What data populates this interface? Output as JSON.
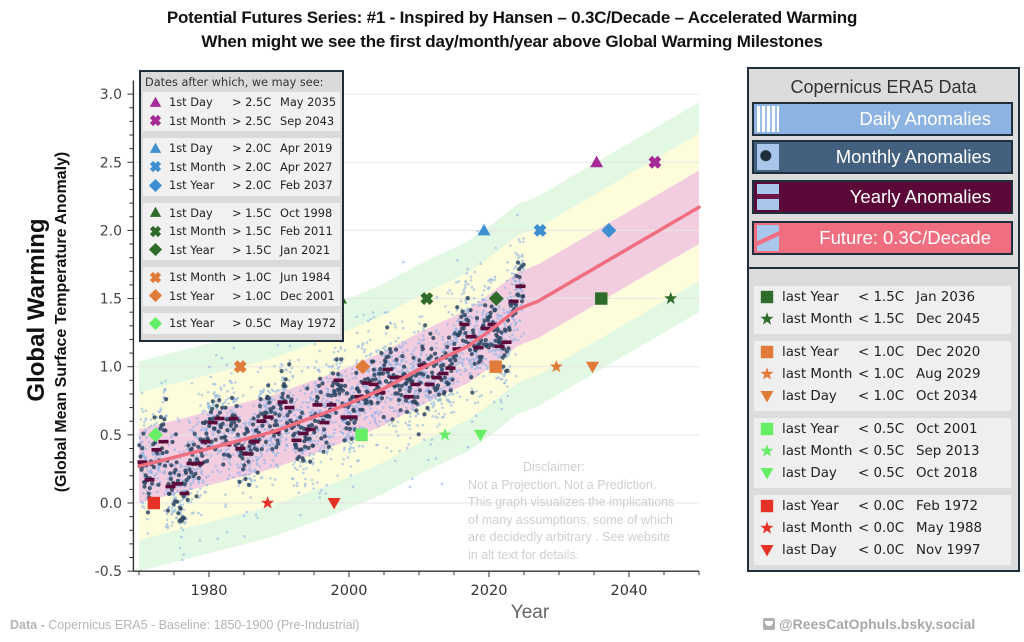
{
  "title": {
    "line1": "Potential Futures Series: #1 - Inspired by Hansen – 0.3C/Decade – Accelerated Warming",
    "line2": "When might we see the first day/month/year above Global Warming Milestones"
  },
  "axes": {
    "ylabel_main": "Global Warming",
    "ylabel_sub": "(Global Mean Surface Temperature Anomaly)",
    "xlabel": "Year"
  },
  "chart_data": {
    "type": "scatter",
    "title": "Potential Futures Series: #1 - Inspired by Hansen – 0.3C/Decade – Accelerated Warming",
    "subtitle": "When might we see the first day/month/year above Global Warming Milestones",
    "xlabel": "Year",
    "ylabel": "Global Warming (Global Mean Surface Temperature Anomaly)",
    "xlim": [
      1969.2,
      2050
    ],
    "ylim": [
      -0.5,
      3.1
    ],
    "xticks": [
      1980,
      2000,
      2020,
      2040
    ],
    "xtick_labels": [
      "1980",
      "2000",
      "2020",
      "2040"
    ],
    "yticks": [
      -0.5,
      0.0,
      0.5,
      1.0,
      1.5,
      2.0,
      2.5,
      3.0
    ],
    "ytick_labels": [
      "-0.5",
      "0.0",
      "0.5",
      "1.0",
      "1.5",
      "2.0",
      "2.5",
      "3.0"
    ],
    "grid": "horizontal",
    "legend": [
      "top-left",
      "right"
    ],
    "series": {
      "daily": {
        "name": "Daily Anomalies",
        "color": "#8db3e2",
        "spread_sd": 0.2
      },
      "monthly": {
        "name": "Monthly Anomalies",
        "color": "#2d4560",
        "spread_sd": 0.12
      },
      "yearly": {
        "name": "Yearly Anomalies",
        "color": "#5c0a3a",
        "x": [
          1970,
          1971,
          1972,
          1973,
          1974,
          1975,
          1976,
          1977,
          1978,
          1979,
          1980,
          1981,
          1982,
          1983,
          1984,
          1985,
          1986,
          1987,
          1988,
          1989,
          1990,
          1991,
          1992,
          1993,
          1994,
          1995,
          1996,
          1997,
          1998,
          1999,
          2000,
          2001,
          2002,
          2003,
          2004,
          2005,
          2006,
          2007,
          2008,
          2009,
          2010,
          2011,
          2012,
          2013,
          2014,
          2015,
          2016,
          2017,
          2018,
          2019,
          2020,
          2021,
          2022,
          2023,
          2024
        ],
        "values": [
          0.3,
          0.17,
          0.39,
          0.45,
          0.12,
          0.14,
          0.07,
          0.29,
          0.29,
          0.45,
          0.59,
          0.62,
          0.43,
          0.62,
          0.4,
          0.36,
          0.45,
          0.6,
          0.63,
          0.52,
          0.74,
          0.7,
          0.46,
          0.51,
          0.54,
          0.72,
          0.59,
          0.72,
          0.9,
          0.63,
          0.63,
          0.78,
          0.88,
          0.87,
          0.81,
          0.98,
          0.92,
          0.92,
          0.78,
          0.87,
          1.01,
          0.87,
          0.92,
          0.95,
          0.99,
          1.13,
          1.31,
          1.22,
          1.14,
          1.28,
          1.31,
          1.15,
          1.18,
          1.48,
          1.59
        ]
      },
      "future": {
        "name": "Future: 0.3C/Decade",
        "color": "#ef6f80",
        "x": [
          1970,
          1980,
          1989,
          1996.5,
          2000,
          2005,
          2010,
          2017,
          2020,
          2024,
          2027,
          2030,
          2040,
          2050
        ],
        "values": [
          0.27,
          0.4,
          0.52,
          0.66,
          0.73,
          0.84,
          0.98,
          1.15,
          1.26,
          1.42,
          1.48,
          1.57,
          1.87,
          2.17
        ],
        "band_offsets": [
          0.27,
          0.54,
          0.77
        ],
        "band_colors": [
          "#f2cde0",
          "#fdfddc",
          "#e3f8e3"
        ]
      }
    },
    "milestones_first": [
      [
        {
          "label": "1st Day",
          "cond": "> 2.5C",
          "date": "May 2035",
          "year": 2035.37,
          "value": 2.5,
          "shape": "triangle-up",
          "color": "#a52a96"
        },
        {
          "label": "1st Month",
          "cond": "> 2.5C",
          "date": "Sep 2043",
          "year": 2043.7,
          "value": 2.5,
          "shape": "x",
          "color": "#a52a96"
        }
      ],
      [
        {
          "label": "1st Day",
          "cond": "> 2.0C",
          "date": "Apr 2019",
          "year": 2019.29,
          "value": 2.0,
          "shape": "triangle-up",
          "color": "#3d8fd1"
        },
        {
          "label": "1st Month",
          "cond": "> 2.0C",
          "date": "Apr 2027",
          "year": 2027.29,
          "value": 2.0,
          "shape": "x",
          "color": "#3d8fd1"
        },
        {
          "label": "1st Year",
          "cond": "> 2.0C",
          "date": "Feb 2037",
          "year": 2037.12,
          "value": 2.0,
          "shape": "diamond",
          "color": "#3d8fd1"
        }
      ],
      [
        {
          "label": "1st Day",
          "cond": "> 1.5C",
          "date": "Oct 1998",
          "year": 1998.79,
          "value": 1.5,
          "shape": "triangle-up",
          "color": "#2f6b2a"
        },
        {
          "label": "1st Month",
          "cond": "> 1.5C",
          "date": "Feb 2011",
          "year": 2011.12,
          "value": 1.5,
          "shape": "x",
          "color": "#2f6b2a"
        },
        {
          "label": "1st Year",
          "cond": "> 1.5C",
          "date": "Jan 2021",
          "year": 2021.04,
          "value": 1.5,
          "shape": "diamond",
          "color": "#2f6b2a"
        }
      ],
      [
        {
          "label": "1st Month",
          "cond": "> 1.0C",
          "date": "Jun 1984",
          "year": 1984.46,
          "value": 1.0,
          "shape": "x",
          "color": "#e07b39"
        },
        {
          "label": "1st Year",
          "cond": "> 1.0C",
          "date": "Dec 2001",
          "year": 2001.96,
          "value": 1.0,
          "shape": "diamond",
          "color": "#e07b39"
        }
      ],
      [
        {
          "label": "1st Year",
          "cond": "> 0.5C",
          "date": "May 1972",
          "year": 1972.37,
          "value": 0.5,
          "shape": "diamond",
          "color": "#66ee66"
        }
      ]
    ],
    "milestones_last": [
      [
        {
          "label": "last Year",
          "cond": "< 1.5C",
          "date": "Jan 2036",
          "year": 2036.04,
          "value": 1.5,
          "shape": "square",
          "color": "#2f6b2a"
        },
        {
          "label": "last Month",
          "cond": "< 1.5C",
          "date": "Dec 2045",
          "year": 2045.96,
          "value": 1.5,
          "shape": "star",
          "color": "#2f6b2a"
        }
      ],
      [
        {
          "label": "last Year",
          "cond": "< 1.0C",
          "date": "Dec 2020",
          "year": 2020.96,
          "value": 1.0,
          "shape": "square",
          "color": "#e07b39"
        },
        {
          "label": "last Month",
          "cond": "< 1.0C",
          "date": "Aug 2029",
          "year": 2029.62,
          "value": 1.0,
          "shape": "star",
          "color": "#e07b39"
        },
        {
          "label": "last Day",
          "cond": "< 1.0C",
          "date": "Oct 2034",
          "year": 2034.79,
          "value": 1.0,
          "shape": "triangle-down",
          "color": "#e07b39"
        }
      ],
      [
        {
          "label": "last Year",
          "cond": "< 0.5C",
          "date": "Oct 2001",
          "year": 2001.79,
          "value": 0.5,
          "shape": "square",
          "color": "#66ee66"
        },
        {
          "label": "last Month",
          "cond": "< 0.5C",
          "date": "Sep 2013",
          "year": 2013.71,
          "value": 0.5,
          "shape": "star",
          "color": "#66ee66"
        },
        {
          "label": "last Day",
          "cond": "< 0.5C",
          "date": "Oct 2018",
          "year": 2018.79,
          "value": 0.5,
          "shape": "triangle-down",
          "color": "#66ee66"
        }
      ],
      [
        {
          "label": "last Year",
          "cond": "< 0.0C",
          "date": "Feb 1972",
          "year": 1972.12,
          "value": 0.0,
          "shape": "square",
          "color": "#e53227"
        },
        {
          "label": "last Month",
          "cond": "< 0.0C",
          "date": "May 1988",
          "year": 1988.37,
          "value": 0.0,
          "shape": "star",
          "color": "#e53227"
        },
        {
          "label": "last Day",
          "cond": "< 0.0C",
          "date": "Nov 1997",
          "year": 1997.87,
          "value": 0.0,
          "shape": "triangle-down",
          "color": "#e53227"
        }
      ]
    ]
  },
  "legend_left": {
    "header": "Dates after which, we may see:"
  },
  "legend_right": {
    "header": "Copernicus ERA5 Data",
    "daily_label": "Daily Anomalies",
    "monthly_label": "Monthly Anomalies",
    "yearly_label": "Yearly Anomalies",
    "future_label": "Future: 0.3C/Decade"
  },
  "disclaimer": {
    "heading": "Disclaimer:",
    "lines": [
      "Not a Projection. Not a Prediction.",
      "This graph visualizes the implications",
      "of many assumptions, some of which",
      "are decidedly arbitrary . See website",
      "in alt text for details."
    ]
  },
  "footer": {
    "data_prefix": "Data -",
    "data_text": " Copernicus ERA5 - Baseline: 1850-1900 (Pre-Industrial)",
    "social_handle": "@ReesCatOphuls.bsky.social"
  }
}
